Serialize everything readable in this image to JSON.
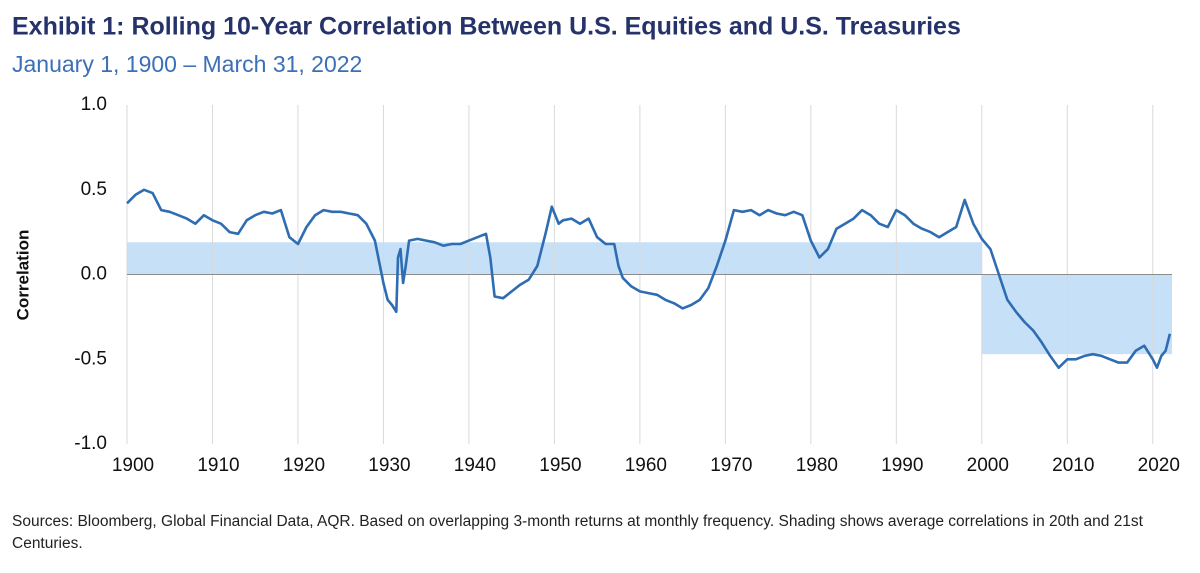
{
  "chart_data": {
    "type": "line",
    "title": "Exhibit 1: Rolling 10-Year Correlation Between U.S. Equities and U.S. Treasuries",
    "subtitle": "January 1, 1900 – March 31, 2022",
    "y_label": "Correlation",
    "source": "Sources: Bloomberg, Global Financial Data, AQR. Based on overlapping 3-month returns at monthly frequency. Shading shows average correlations in 20th and 21st Centuries.",
    "xlim": [
      1900,
      2022.25
    ],
    "ylim": [
      -1.0,
      1.0
    ],
    "xticks": [
      1900,
      1910,
      1920,
      1930,
      1940,
      1950,
      1960,
      1970,
      1980,
      1990,
      2000,
      2010,
      2020
    ],
    "yticks": [
      {
        "value": 1.0,
        "label": "1.0"
      },
      0.5,
      {
        "value": 0.0,
        "label": "0.0"
      },
      -0.5,
      {
        "value": -1.0,
        "label": "-1.0"
      }
    ],
    "grid": true,
    "shading_color": "#c6e0f7",
    "shading": [
      {
        "start": 1900,
        "end": 2000,
        "value": 0.19
      },
      {
        "start": 2000,
        "end": 2022.25,
        "value": -0.47
      }
    ],
    "x": [
      1900,
      1901,
      1902,
      1903,
      1904,
      1905,
      1906,
      1907,
      1908,
      1909,
      1910,
      1911,
      1912,
      1913,
      1914,
      1915,
      1916,
      1917,
      1918,
      1919,
      1920,
      1921,
      1922,
      1923,
      1924,
      1925,
      1926,
      1927,
      1928,
      1929,
      1929.6,
      1930,
      1930.5,
      1931,
      1931.5,
      1931.7,
      1932,
      1932.3,
      1932.6,
      1933,
      1934,
      1935,
      1936,
      1937,
      1938,
      1939,
      1940,
      1941,
      1942,
      1942.5,
      1943,
      1944,
      1945,
      1946,
      1947,
      1948,
      1949,
      1949.7,
      1950.5,
      1951,
      1952,
      1953,
      1954,
      1955,
      1956,
      1957,
      1957.5,
      1958,
      1959,
      1960,
      1961,
      1962,
      1963,
      1964,
      1965,
      1966,
      1967,
      1968,
      1969,
      1970,
      1971,
      1972,
      1973,
      1974,
      1975,
      1976,
      1977,
      1978,
      1979,
      1980,
      1981,
      1982,
      1983,
      1984,
      1985,
      1986,
      1987,
      1988,
      1989,
      1990,
      1991,
      1992,
      1993,
      1994,
      1995,
      1996,
      1997,
      1998,
      1999,
      2000,
      2001,
      2002,
      2003,
      2004,
      2005,
      2006,
      2007,
      2008,
      2009,
      2010,
      2011,
      2012,
      2013,
      2014,
      2015,
      2016,
      2017,
      2018,
      2019,
      2020,
      2020.5,
      2021,
      2021.5,
      2022
    ],
    "series": [
      {
        "name": "Rolling 10-Year Correlation",
        "color": "#2f6db3",
        "values": [
          0.42,
          0.47,
          0.5,
          0.48,
          0.38,
          0.37,
          0.35,
          0.33,
          0.3,
          0.35,
          0.32,
          0.3,
          0.25,
          0.24,
          0.32,
          0.35,
          0.37,
          0.36,
          0.38,
          0.22,
          0.18,
          0.28,
          0.35,
          0.38,
          0.37,
          0.37,
          0.36,
          0.35,
          0.3,
          0.2,
          0.05,
          -0.05,
          -0.15,
          -0.18,
          -0.22,
          0.1,
          0.15,
          -0.05,
          0.05,
          0.2,
          0.21,
          0.2,
          0.19,
          0.17,
          0.18,
          0.18,
          0.2,
          0.22,
          0.24,
          0.1,
          -0.13,
          -0.14,
          -0.1,
          -0.06,
          -0.03,
          0.05,
          0.25,
          0.4,
          0.3,
          0.32,
          0.33,
          0.3,
          0.33,
          0.22,
          0.18,
          0.18,
          0.05,
          -0.02,
          -0.07,
          -0.1,
          -0.11,
          -0.12,
          -0.15,
          -0.17,
          -0.2,
          -0.18,
          -0.15,
          -0.08,
          0.05,
          0.2,
          0.38,
          0.37,
          0.38,
          0.35,
          0.38,
          0.36,
          0.35,
          0.37,
          0.35,
          0.2,
          0.1,
          0.15,
          0.27,
          0.3,
          0.33,
          0.38,
          0.35,
          0.3,
          0.28,
          0.38,
          0.35,
          0.3,
          0.27,
          0.25,
          0.22,
          0.25,
          0.28,
          0.44,
          0.3,
          0.21,
          0.15,
          0.0,
          -0.15,
          -0.22,
          -0.28,
          -0.33,
          -0.4,
          -0.48,
          -0.55,
          -0.5,
          -0.5,
          -0.48,
          -0.47,
          -0.48,
          -0.5,
          -0.52,
          -0.52,
          -0.45,
          -0.42,
          -0.5,
          -0.55,
          -0.48,
          -0.45,
          -0.35
        ]
      }
    ]
  }
}
